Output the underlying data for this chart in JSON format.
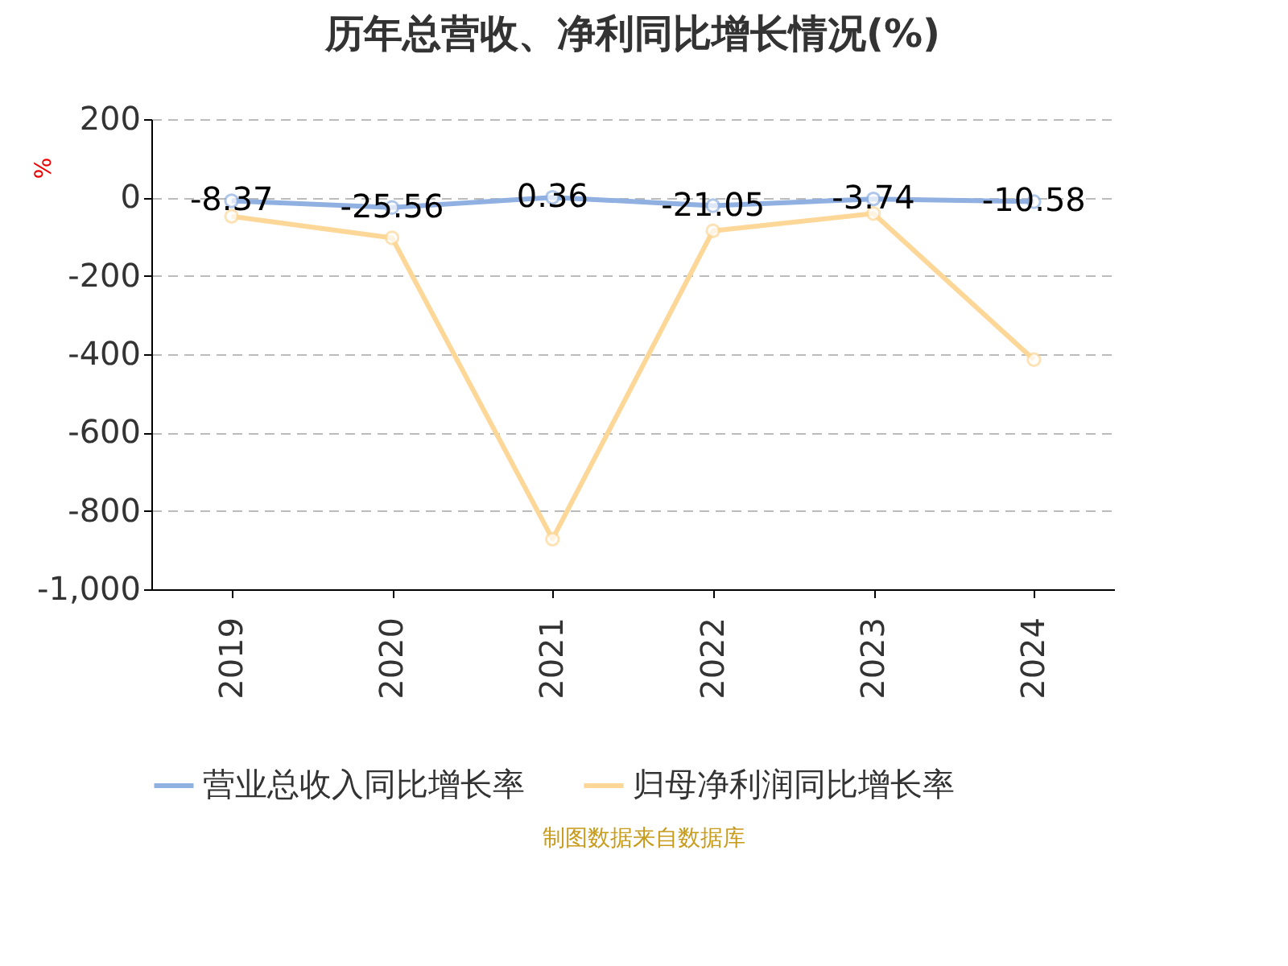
{
  "chart_data": {
    "type": "line",
    "title": "历年总营收、净利同比增长情况(%)",
    "ylabel": "%",
    "categories": [
      "2019",
      "2020",
      "2021",
      "2022",
      "2023",
      "2024"
    ],
    "series": [
      {
        "name": "营业总收入同比增长率",
        "color": "#8fb0e0",
        "values": [
          -8.37,
          -25.56,
          0.36,
          -21.05,
          -3.74,
          -10.58
        ],
        "value_labels": [
          "-8.37",
          "-25.56",
          "0.36",
          "-21.05",
          "-3.74",
          "-10.58"
        ]
      },
      {
        "name": "归母净利润同比增长率",
        "color": "#fdd797",
        "values": [
          -48,
          -103,
          -872,
          -85,
          -41,
          -414
        ]
      }
    ],
    "ylim": [
      -1000,
      200
    ],
    "yticks": [
      200,
      0,
      -200,
      -400,
      -600,
      -800,
      {
        "value": -1000,
        "label": "-1,000"
      }
    ],
    "grid": "y",
    "legend": "bottom",
    "marker": "circle",
    "line_style": "solid",
    "annotations": [
      "制图数据来自数据库"
    ]
  }
}
